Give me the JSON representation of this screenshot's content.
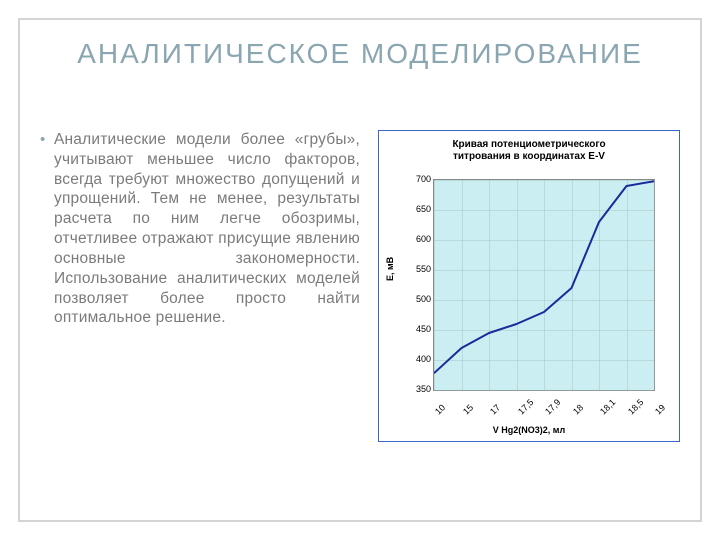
{
  "title": "АНАЛИТИЧЕСКОЕ МОДЕЛИРОВАНИЕ",
  "bullet": "Аналитические модели более «грубы», учитывают меньшее число факторов, всегда требуют множество допущений и упрощений. Тем не менее, результаты расчета по ним легче обозримы, отчетливее отражают присущие явлению основные закономерности. Использование аналитических моделей позволяет более просто найти оптимальное решение.",
  "chart": {
    "type": "line",
    "title_line1": "Кривая потенциометрического",
    "title_line2": "титрования в координатах E-V",
    "title_fontsize": 10,
    "background_color": "#ffffff",
    "plot_background_color": "#cbeef2",
    "plot_border_color": "#888888",
    "container_border_color": "#3a66c7",
    "line_color": "#1a2a9a",
    "line_width": 2,
    "ylabel": "E, мВ",
    "xlabel": "V Hg2(NO3)2, мл",
    "label_fontsize": 9,
    "tick_fontsize": 9,
    "ylim": [
      350,
      700
    ],
    "y_ticks": [
      350,
      400,
      450,
      500,
      550,
      600,
      650,
      700
    ],
    "x_categories": [
      "10",
      "15",
      "17",
      "17,5",
      "17,9",
      "18",
      "18,1",
      "18,5",
      "19"
    ],
    "y_values": [
      378,
      420,
      445,
      460,
      480,
      520,
      630,
      690,
      698
    ],
    "grid_color": "#a0b8b8"
  }
}
